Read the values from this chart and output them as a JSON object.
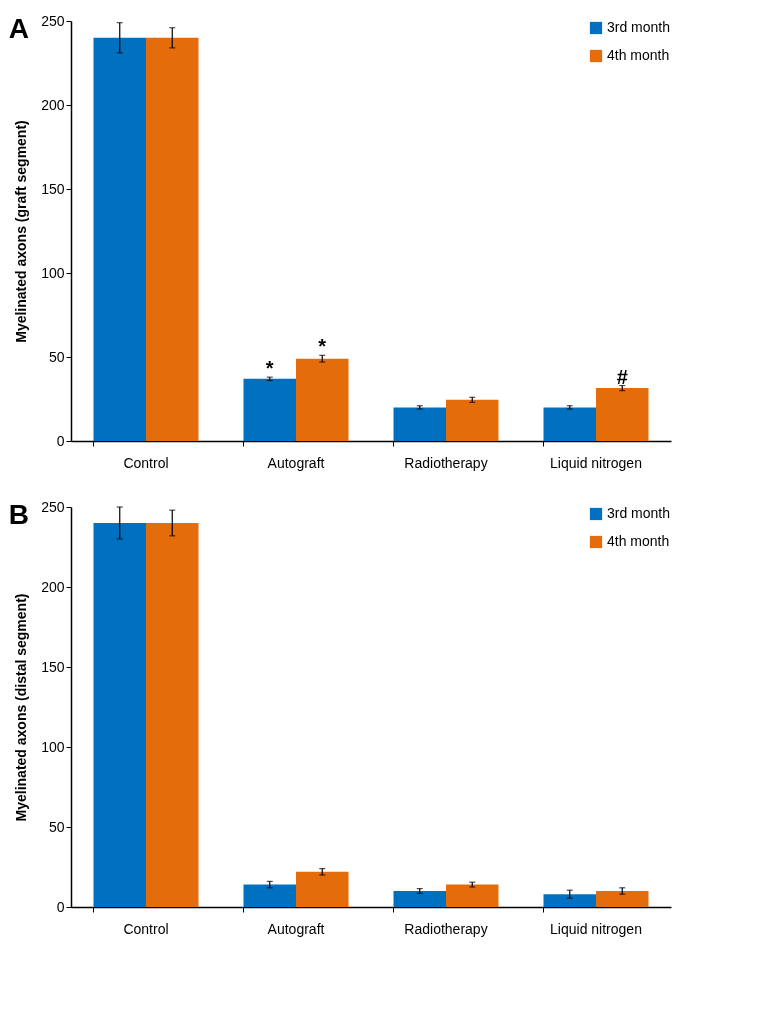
{
  "chart_data": [
    {
      "type": "bar",
      "title": "A",
      "ylabel": "Myelinated axons (graft segment)",
      "categories": [
        "Control",
        "Autograft",
        "Radiotherapy",
        "Liquid nitrogen"
      ],
      "series": [
        {
          "name": "3rd month",
          "color": "#0070c0",
          "values": [
            240,
            37,
            20,
            20
          ],
          "errors": [
            9,
            1,
            1,
            1
          ]
        },
        {
          "name": "4th month",
          "color": "#e46c0a",
          "values": [
            240,
            49,
            24.5,
            31.5
          ],
          "errors": [
            6,
            2,
            1.5,
            1.5
          ]
        }
      ],
      "ylim": [
        0,
        250
      ],
      "yticks": [
        0,
        50,
        100,
        150,
        200,
        250
      ],
      "legend": "top right",
      "annotations": [
        {
          "text": "*",
          "x": "Autograft",
          "y": 37
        },
        {
          "text": "*",
          "x": "Autograft",
          "y": 49
        },
        {
          "text": "#",
          "x": "Liquid nitrogen",
          "y": 31.5
        }
      ]
    },
    {
      "type": "bar",
      "title": "B",
      "ylabel": "Myelinated axons (distal segment)",
      "categories": [
        "Control",
        "Autograft",
        "Radiotherapy",
        "Liquid nitrogen"
      ],
      "series": [
        {
          "name": "3rd month",
          "color": "#0070c0",
          "values": [
            240,
            14,
            10,
            8
          ],
          "errors": [
            10,
            2,
            1.5,
            2.5
          ]
        },
        {
          "name": "4th month",
          "color": "#e46c0a",
          "values": [
            240,
            22,
            14,
            10
          ],
          "errors": [
            8,
            2,
            1.5,
            2
          ]
        }
      ],
      "ylim": [
        0,
        250
      ],
      "yticks": [
        0,
        50,
        100,
        150,
        200,
        250
      ],
      "legend": "top right"
    }
  ]
}
